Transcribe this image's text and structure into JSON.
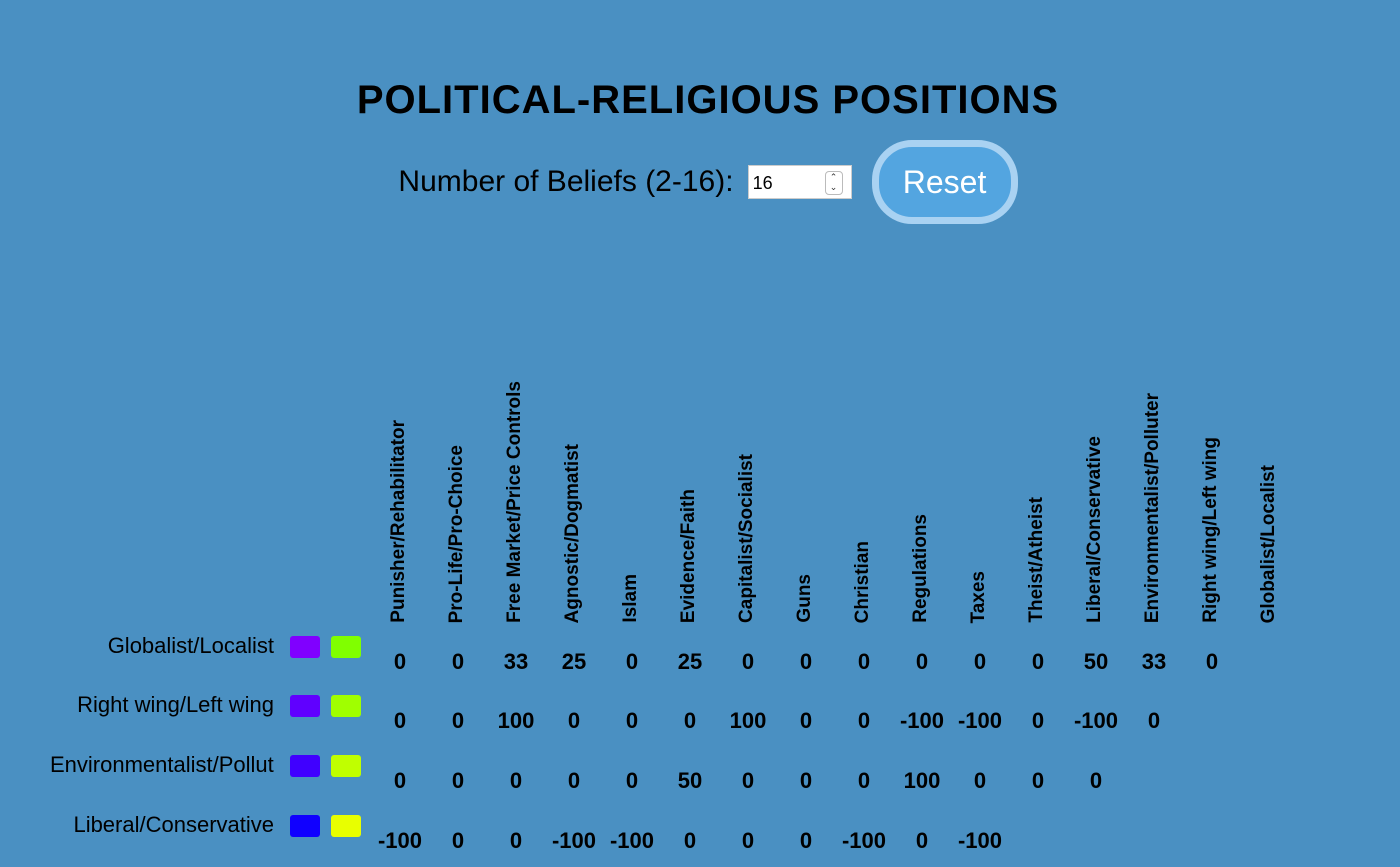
{
  "title": "POLITICAL-RELIGIOUS POSITIONS",
  "controls": {
    "label": "Number of Beliefs (2-16):",
    "value": "16",
    "min": "2",
    "max": "16",
    "reset_label": "Reset"
  },
  "columns": [
    "Punisher/Rehabilitator",
    "Pro-Life/Pro-Choice",
    "Free Market/Price Controls",
    "Agnostic/Dogmatist",
    "Islam",
    "Evidence/Faith",
    "Capitalist/Socialist",
    "Guns",
    "Christian",
    "Regulations",
    "Taxes",
    "Theist/Atheist",
    "Liberal/Conservative",
    "Environmentalist/Polluter",
    "Right wing/Left wing",
    "Globalist/Localist"
  ],
  "rows": [
    {
      "label": "Globalist/Localist",
      "colors": [
        "#8000ff",
        "#80ff00"
      ],
      "values": [
        "0",
        "0",
        "33",
        "25",
        "0",
        "25",
        "0",
        "0",
        "0",
        "0",
        "0",
        "0",
        "50",
        "33",
        "0"
      ]
    },
    {
      "label": "Right wing/Left wing",
      "colors": [
        "#6000ff",
        "#a0ff00"
      ],
      "values": [
        "0",
        "0",
        "100",
        "0",
        "0",
        "0",
        "100",
        "0",
        "0",
        "-100",
        "-100",
        "0",
        "-100",
        "0"
      ]
    },
    {
      "label": "Environmentalist/Polluter",
      "colors": [
        "#4000ff",
        "#c0ff00"
      ],
      "values": [
        "0",
        "0",
        "0",
        "0",
        "0",
        "50",
        "0",
        "0",
        "0",
        "100",
        "0",
        "0",
        "0"
      ]
    },
    {
      "label": "Liberal/Conservative",
      "colors": [
        "#1000ff",
        "#e8ff00"
      ],
      "values": [
        "-100",
        "0",
        "0",
        "-100",
        "-100",
        "0",
        "0",
        "0",
        "-100",
        "0",
        "-100"
      ]
    }
  ],
  "colors": {
    "background": "#4a90c2",
    "reset_button": "#53a5e0"
  }
}
